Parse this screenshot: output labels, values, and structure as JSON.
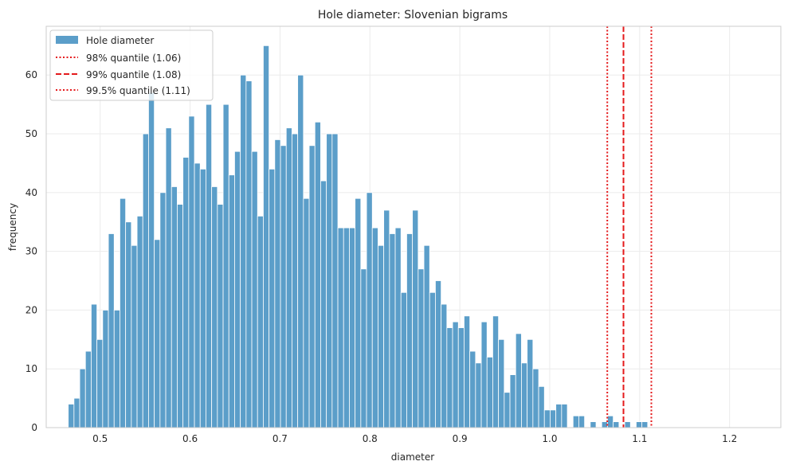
{
  "chart_data": {
    "type": "bar",
    "title": "Hole diameter: Slovenian bigrams",
    "xlabel": "diameter",
    "ylabel": "frequency",
    "xlim": [
      0.44,
      1.257
    ],
    "ylim": [
      0,
      68.3
    ],
    "xticks": [
      "0.5",
      "0.6",
      "0.7",
      "0.8",
      "0.9",
      "1.0",
      "1.1",
      "1.2"
    ],
    "yticks": [
      "0",
      "10",
      "20",
      "30",
      "40",
      "50",
      "60"
    ],
    "grid": true,
    "legend_position": "top-left",
    "bin_width": 0.00638,
    "bin_start": 0.4645,
    "series": [
      {
        "name": "Hole diameter",
        "color": "#5b9ec9",
        "values": [
          4,
          5,
          10,
          13,
          21,
          15,
          20,
          33,
          20,
          39,
          35,
          31,
          36,
          50,
          57,
          32,
          40,
          51,
          41,
          38,
          46,
          53,
          45,
          44,
          55,
          41,
          38,
          55,
          43,
          47,
          60,
          59,
          47,
          36,
          65,
          44,
          49,
          48,
          51,
          50,
          60,
          39,
          48,
          52,
          42,
          50,
          50,
          34,
          34,
          34,
          39,
          27,
          40,
          34,
          31,
          37,
          33,
          34,
          23,
          33,
          37,
          27,
          31,
          23,
          25,
          21,
          17,
          18,
          17,
          19,
          13,
          11,
          18,
          12,
          19,
          15,
          6,
          9,
          16,
          11,
          15,
          10,
          7,
          3,
          3,
          4,
          4,
          0,
          2,
          2,
          0,
          1,
          0,
          1,
          2,
          1,
          0,
          1,
          0,
          1,
          1
        ]
      }
    ],
    "quantiles": [
      {
        "label": "98% quantile (1.06)",
        "value": 1.064,
        "style": "dotted",
        "color": "#e41a1c"
      },
      {
        "label": "99% quantile (1.08)",
        "value": 1.082,
        "style": "dashed",
        "color": "#e41a1c"
      },
      {
        "label": "99.5% quantile (1.11)",
        "value": 1.113,
        "style": "dotted",
        "color": "#e41a1c"
      }
    ]
  }
}
